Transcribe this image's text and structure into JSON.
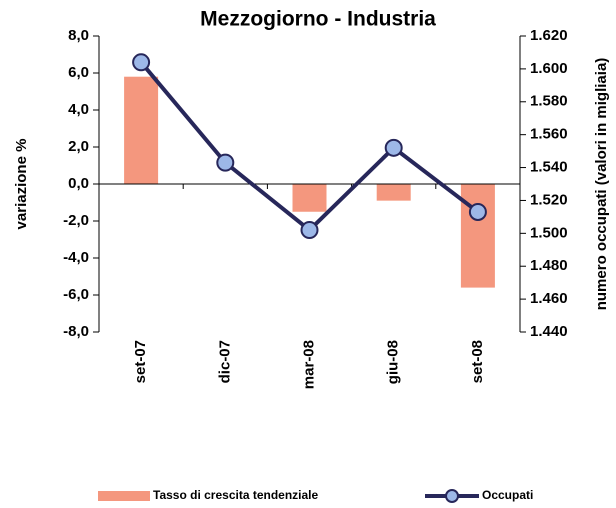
{
  "chart_data": {
    "type": "bar_line",
    "title": "Mezzogiorno - Industria",
    "ylabel": "variazione %",
    "y2label": "numero occupati (valori in migliaia)",
    "categories": [
      "set-07",
      "dic-07",
      "mar-08",
      "giu-08",
      "set-08"
    ],
    "series": [
      {
        "name": "Tasso di crescita tendenziale",
        "type": "bar",
        "color": "#f4977e",
        "values": [
          5.8,
          0.0,
          -1.5,
          -0.9,
          -5.6
        ]
      },
      {
        "name": "Occupati",
        "type": "line",
        "axis": "y2",
        "color": "#27275a",
        "marker_color": "#9db8e8",
        "values": [
          1604,
          1543,
          1502,
          1552,
          1513
        ]
      }
    ],
    "ylim": [
      -8,
      8
    ],
    "yticks": [
      {
        "value": 8,
        "label": "8,0"
      },
      {
        "value": 6,
        "label": "6,0"
      },
      {
        "value": 4,
        "label": "4,0"
      },
      {
        "value": 2,
        "label": "2,0"
      },
      {
        "value": 0,
        "label": "0,0"
      },
      {
        "value": -2,
        "label": "-2,0"
      },
      {
        "value": -4,
        "label": "-4,0"
      },
      {
        "value": -6,
        "label": "-6,0"
      },
      {
        "value": -8,
        "label": "-8,0"
      }
    ],
    "y2lim": [
      1440,
      1620
    ],
    "y2ticks": [
      {
        "value": 1620,
        "label": "1.620"
      },
      {
        "value": 1600,
        "label": "1.600"
      },
      {
        "value": 1580,
        "label": "1.580"
      },
      {
        "value": 1560,
        "label": "1.560"
      },
      {
        "value": 1540,
        "label": "1.540"
      },
      {
        "value": 1520,
        "label": "1.520"
      },
      {
        "value": 1500,
        "label": "1.500"
      },
      {
        "value": 1480,
        "label": "1.480"
      },
      {
        "value": 1460,
        "label": "1.460"
      },
      {
        "value": 1440,
        "label": "1.440"
      }
    ]
  }
}
